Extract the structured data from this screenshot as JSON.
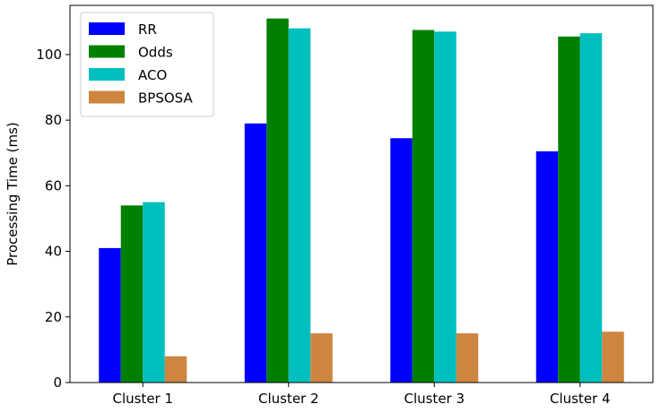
{
  "chart_data": {
    "type": "bar",
    "title": "",
    "xlabel": "",
    "ylabel": "Processing Time (ms)",
    "categories": [
      "Cluster 1",
      "Cluster 2",
      "Cluster 3",
      "Cluster 4"
    ],
    "ylim": [
      0,
      115
    ],
    "yticks": [
      0,
      20,
      40,
      60,
      80,
      100
    ],
    "grid": false,
    "legend_position": "top-left",
    "series": [
      {
        "name": "RR",
        "color": "#0000ff",
        "values": [
          41,
          79,
          74.5,
          70.5
        ]
      },
      {
        "name": "Odds",
        "color": "#008000",
        "values": [
          54,
          111,
          107.5,
          105.5
        ]
      },
      {
        "name": "ACO",
        "color": "#00bfbf",
        "values": [
          55,
          108,
          107,
          106.5
        ]
      },
      {
        "name": "BPSOSA",
        "color": "#cd853f",
        "values": [
          8,
          15,
          15,
          15.5
        ]
      }
    ]
  }
}
